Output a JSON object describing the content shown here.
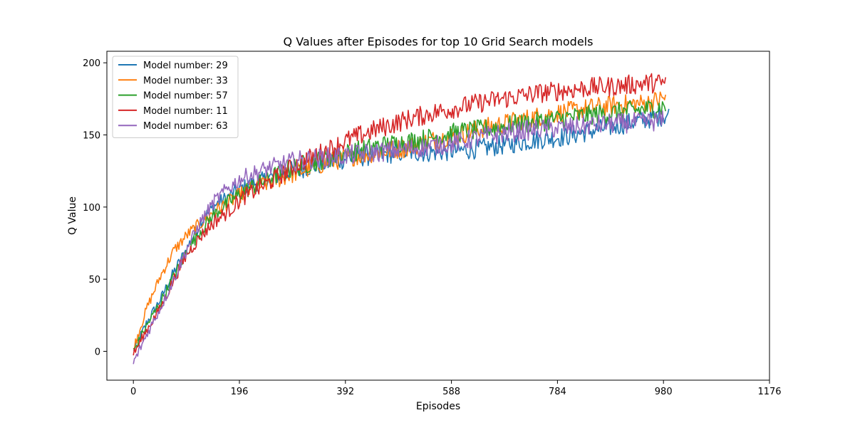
{
  "chart_data": {
    "type": "line",
    "title": "Q Values after Episodes for top 10 Grid Search models",
    "xlabel": "Episodes",
    "ylabel": "Q Value",
    "xlim": [
      -49,
      1176
    ],
    "ylim": [
      -20,
      208
    ],
    "x_ticks": [
      0,
      196,
      392,
      588,
      784,
      980,
      1176
    ],
    "y_ticks": [
      0,
      50,
      100,
      150,
      200
    ],
    "grid": false,
    "legend_position": "upper-left",
    "series": [
      {
        "name": "Model number: 29",
        "color": "#1f77b4",
        "x_end": 990,
        "points": [
          [
            0,
            0
          ],
          [
            25,
            20
          ],
          [
            50,
            36
          ],
          [
            75,
            55
          ],
          [
            100,
            72
          ],
          [
            125,
            90
          ],
          [
            150,
            101
          ],
          [
            175,
            107
          ],
          [
            200,
            113
          ],
          [
            250,
            120
          ],
          [
            300,
            126
          ],
          [
            350,
            130
          ],
          [
            400,
            134
          ],
          [
            450,
            136
          ],
          [
            500,
            138
          ],
          [
            550,
            138
          ],
          [
            600,
            139
          ],
          [
            650,
            141
          ],
          [
            700,
            144
          ],
          [
            750,
            147
          ],
          [
            800,
            149
          ],
          [
            850,
            153
          ],
          [
            900,
            157
          ],
          [
            950,
            161
          ],
          [
            990,
            164
          ]
        ]
      },
      {
        "name": "Model number: 33",
        "color": "#ff7f0e",
        "x_end": 985,
        "points": [
          [
            0,
            2
          ],
          [
            25,
            30
          ],
          [
            50,
            52
          ],
          [
            75,
            70
          ],
          [
            100,
            81
          ],
          [
            125,
            89
          ],
          [
            150,
            97
          ],
          [
            175,
            103
          ],
          [
            200,
            109
          ],
          [
            250,
            117
          ],
          [
            300,
            124
          ],
          [
            350,
            130
          ],
          [
            400,
            135
          ],
          [
            450,
            138
          ],
          [
            500,
            141
          ],
          [
            550,
            146
          ],
          [
            600,
            150
          ],
          [
            650,
            155
          ],
          [
            700,
            159
          ],
          [
            750,
            163
          ],
          [
            800,
            166
          ],
          [
            850,
            169
          ],
          [
            900,
            171
          ],
          [
            950,
            172
          ],
          [
            985,
            176
          ]
        ]
      },
      {
        "name": "Model number: 57",
        "color": "#2ca02c",
        "x_end": 985,
        "points": [
          [
            0,
            0
          ],
          [
            25,
            18
          ],
          [
            50,
            34
          ],
          [
            75,
            52
          ],
          [
            100,
            70
          ],
          [
            125,
            84
          ],
          [
            150,
            95
          ],
          [
            175,
            103
          ],
          [
            200,
            110
          ],
          [
            250,
            120
          ],
          [
            300,
            128
          ],
          [
            350,
            133
          ],
          [
            400,
            138
          ],
          [
            450,
            142
          ],
          [
            500,
            145
          ],
          [
            550,
            148
          ],
          [
            600,
            152
          ],
          [
            650,
            154
          ],
          [
            700,
            157
          ],
          [
            750,
            159
          ],
          [
            800,
            162
          ],
          [
            850,
            164
          ],
          [
            900,
            166
          ],
          [
            950,
            168
          ],
          [
            985,
            170
          ]
        ]
      },
      {
        "name": "Model number: 11",
        "color": "#d62728",
        "x_end": 985,
        "points": [
          [
            0,
            -2
          ],
          [
            25,
            15
          ],
          [
            50,
            30
          ],
          [
            75,
            50
          ],
          [
            100,
            68
          ],
          [
            125,
            80
          ],
          [
            150,
            90
          ],
          [
            175,
            97
          ],
          [
            200,
            106
          ],
          [
            250,
            117
          ],
          [
            300,
            129
          ],
          [
            350,
            138
          ],
          [
            400,
            147
          ],
          [
            450,
            154
          ],
          [
            500,
            160
          ],
          [
            550,
            165
          ],
          [
            600,
            169
          ],
          [
            650,
            173
          ],
          [
            700,
            176
          ],
          [
            750,
            179
          ],
          [
            800,
            181
          ],
          [
            850,
            183
          ],
          [
            900,
            184
          ],
          [
            950,
            186
          ],
          [
            985,
            186
          ]
        ]
      },
      {
        "name": "Model number: 63",
        "color": "#9467bd",
        "x_end": 980,
        "points": [
          [
            0,
            -8
          ],
          [
            25,
            12
          ],
          [
            50,
            30
          ],
          [
            75,
            50
          ],
          [
            100,
            72
          ],
          [
            125,
            90
          ],
          [
            150,
            104
          ],
          [
            175,
            113
          ],
          [
            200,
            120
          ],
          [
            250,
            127
          ],
          [
            300,
            132
          ],
          [
            350,
            134
          ],
          [
            400,
            136
          ],
          [
            450,
            138
          ],
          [
            500,
            140
          ],
          [
            550,
            142
          ],
          [
            600,
            145
          ],
          [
            650,
            149
          ],
          [
            700,
            152
          ],
          [
            750,
            154
          ],
          [
            800,
            155
          ],
          [
            850,
            157
          ],
          [
            900,
            158
          ],
          [
            950,
            159
          ],
          [
            980,
            160
          ]
        ]
      }
    ]
  }
}
